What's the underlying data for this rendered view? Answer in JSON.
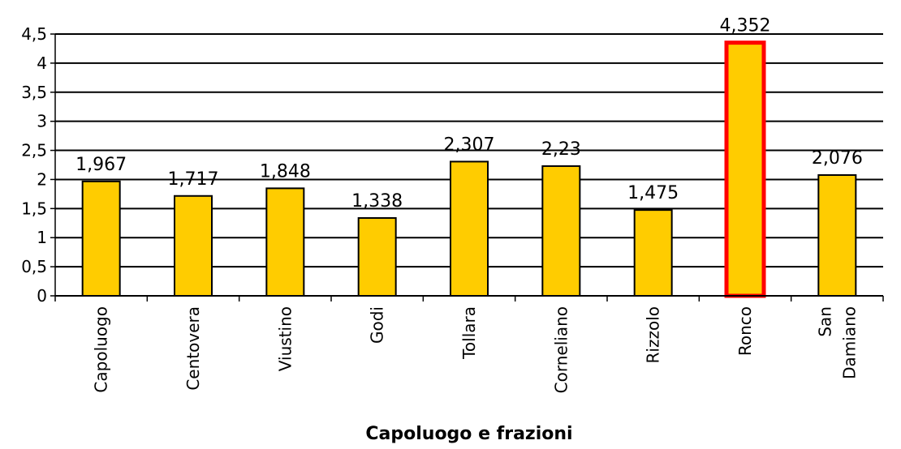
{
  "chart_data": {
    "type": "bar",
    "x_label": "Capoluogo e frazioni",
    "categories": [
      "Capoluogo",
      "Centovera",
      "Viustino",
      "Godi",
      "Tollara",
      "Corneliano",
      "Rizzolo",
      "Ronco",
      "San Damiano"
    ],
    "values": [
      1.967,
      1.717,
      1.848,
      1.338,
      2.307,
      2.23,
      1.475,
      4.352,
      2.076
    ],
    "value_labels": [
      "1,967",
      "1,717",
      "1,848",
      "1,338",
      "2,307",
      "2,23",
      "1,475",
      "4,352",
      "2,076"
    ],
    "color": "#ffcc00",
    "edgecolors": [
      "#000000",
      "#000000",
      "#000000",
      "#000000",
      "#000000",
      "#000000",
      "#000000",
      "#ff0000",
      "#000000"
    ],
    "ylim": [
      0,
      4.5
    ],
    "yticks": [
      0,
      {
        "value": 0.5,
        "label": "0,5"
      },
      1,
      {
        "value": 1.5,
        "label": "1,5"
      },
      2,
      {
        "value": 2.5,
        "label": "2,5"
      },
      3,
      {
        "value": 3.5,
        "label": "3,5"
      },
      4,
      {
        "value": 4.5,
        "label": "4,5"
      }
    ],
    "grid": true
  }
}
